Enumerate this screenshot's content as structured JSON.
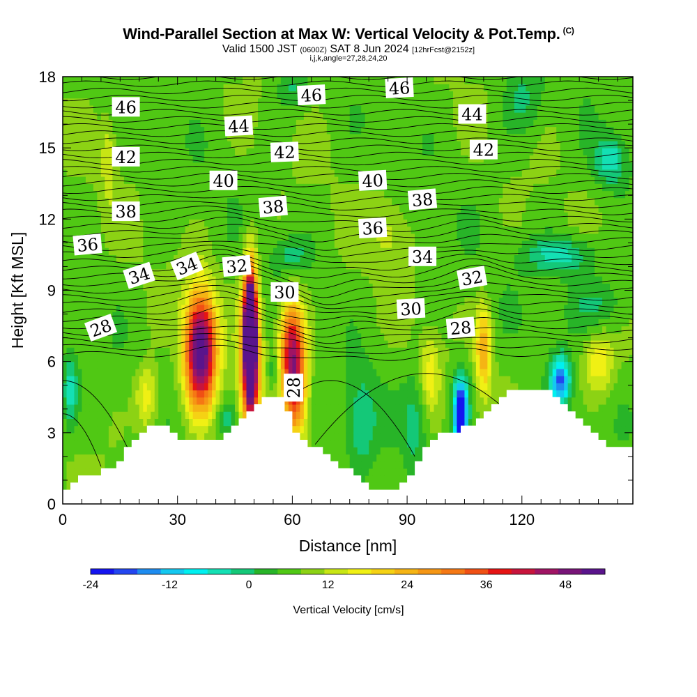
{
  "header": {
    "title": "Wind-Parallel Section at Max W: Vertical Velocity & Pot.Temp.",
    "copyright": "(C)",
    "valid_prefix": "Valid 1500 JST",
    "valid_utc": "(0600Z)",
    "valid_date": "SAT 8 Jun 2024",
    "forecast_info": "[12hrFcst@2152z]",
    "indices": "i,j,k,angle=27,28,24,20"
  },
  "chart_data": {
    "type": "heatmap",
    "title": "Wind-Parallel Section at Max W: Vertical Velocity & Pot.Temp.",
    "xlabel": "Distance [nm]",
    "ylabel": "Height [Kft MSL]",
    "xlim": [
      0,
      149
    ],
    "ylim": [
      0,
      18
    ],
    "x_ticks": [
      0,
      30,
      60,
      90,
      120
    ],
    "y_ticks": [
      0,
      3,
      6,
      9,
      12,
      15,
      18
    ],
    "fill_variable": "Vertical Velocity [cm/s]",
    "colorbar": {
      "label": "Vertical Velocity [cm/s]",
      "ticks": [
        -24,
        -12,
        0,
        12,
        24,
        36,
        48
      ],
      "min": -24,
      "max": 54,
      "step": 3,
      "colors": [
        "#1414f0",
        "#2346f0",
        "#1e8cf0",
        "#14c8f0",
        "#00f0f0",
        "#14e0b4",
        "#14c878",
        "#28b428",
        "#50c814",
        "#8cd214",
        "#c8e614",
        "#f0f014",
        "#f5d214",
        "#f5b414",
        "#f59614",
        "#f57814",
        "#f05014",
        "#e61414",
        "#c8143c",
        "#a01464",
        "#781478",
        "#5a148c"
      ]
    },
    "terrain": [
      [
        0,
        0.6
      ],
      [
        3,
        1.0
      ],
      [
        10,
        1.3
      ],
      [
        13,
        1.6
      ],
      [
        16,
        2.1
      ],
      [
        19,
        2.6
      ],
      [
        22,
        3.2
      ],
      [
        28,
        3.2
      ],
      [
        32,
        2.6
      ],
      [
        35,
        2.8
      ],
      [
        40,
        2.6
      ],
      [
        44,
        3.0
      ],
      [
        47,
        3.6
      ],
      [
        51,
        4.2
      ],
      [
        55,
        4.6
      ],
      [
        57,
        4.6
      ],
      [
        59,
        4.0
      ],
      [
        61,
        3.0
      ],
      [
        65,
        2.5
      ],
      [
        69,
        2.1
      ],
      [
        73,
        1.6
      ],
      [
        77,
        1.1
      ],
      [
        81,
        0.6
      ],
      [
        88,
        0.6
      ],
      [
        90,
        1.0
      ],
      [
        94,
        2.2
      ],
      [
        98,
        3.0
      ],
      [
        107,
        3.2
      ],
      [
        110,
        3.6
      ],
      [
        114,
        4.2
      ],
      [
        118,
        4.8
      ],
      [
        127,
        4.8
      ],
      [
        132,
        4.0
      ],
      [
        136,
        3.4
      ],
      [
        142,
        2.6
      ],
      [
        146,
        2.3
      ],
      [
        149,
        2.3
      ]
    ],
    "w_features": [
      {
        "x": 36,
        "z": 6.5,
        "sx": 4.0,
        "sz": 2.4,
        "w": 42
      },
      {
        "x": 49,
        "z": 7.2,
        "sx": 1.6,
        "sz": 2.6,
        "w": 58
      },
      {
        "x": 49,
        "z": 5.6,
        "sx": 2.8,
        "sz": 3.5,
        "w": 22
      },
      {
        "x": 60,
        "z": 6.6,
        "sx": 3.2,
        "sz": 2.0,
        "w": 30
      },
      {
        "x": 61,
        "z": 4.5,
        "sx": 2.8,
        "sz": 1.8,
        "w": 18
      },
      {
        "x": 110,
        "z": 6.5,
        "sx": 2.0,
        "sz": 1.8,
        "w": 16
      },
      {
        "x": 96,
        "z": 5.5,
        "sx": 2.5,
        "sz": 1.6,
        "w": 8
      },
      {
        "x": 22,
        "z": 4.5,
        "sx": 3.0,
        "sz": 1.4,
        "w": 10
      },
      {
        "x": 104,
        "z": 3.6,
        "sx": 1.5,
        "sz": 1.2,
        "w": -28
      },
      {
        "x": 104,
        "z": 4.4,
        "sx": 2.5,
        "sz": 1.5,
        "w": -10
      },
      {
        "x": 130,
        "z": 5.2,
        "sx": 2.5,
        "sz": 1.0,
        "w": -20
      },
      {
        "x": 2,
        "z": 4.8,
        "sx": 2.0,
        "sz": 1.5,
        "w": -10
      },
      {
        "x": 43,
        "z": 3.6,
        "sx": 3.0,
        "sz": 0.8,
        "w": -6
      },
      {
        "x": 55,
        "z": 5.6,
        "sx": 1.5,
        "sz": 0.8,
        "w": -6
      },
      {
        "x": 78,
        "z": 3.5,
        "sx": 4.0,
        "sz": 2.0,
        "w": -8
      },
      {
        "x": 92,
        "z": 3.5,
        "sx": 3.0,
        "sz": 2.0,
        "w": -6
      },
      {
        "x": 60,
        "z": 10.5,
        "sx": 5.0,
        "sz": 0.8,
        "w": -6
      },
      {
        "x": 130,
        "z": 10.5,
        "sx": 9.0,
        "sz": 0.8,
        "w": -10
      },
      {
        "x": 140,
        "z": 8.4,
        "sx": 8.0,
        "sz": 1.2,
        "w": -6
      },
      {
        "x": 140,
        "z": 6.0,
        "sx": 4.0,
        "sz": 1.4,
        "w": 10
      },
      {
        "x": 12,
        "z": 14.5,
        "sx": 2.0,
        "sz": 1.8,
        "w": 6
      },
      {
        "x": 85,
        "z": 11.5,
        "sx": 5.0,
        "sz": 1.5,
        "w": 5
      },
      {
        "x": 120,
        "z": 17.0,
        "sx": 5.0,
        "sz": 1.5,
        "w": -6
      },
      {
        "x": 143,
        "z": 14.5,
        "sx": 4.0,
        "sz": 1.0,
        "w": -10
      },
      {
        "x": 60,
        "z": 17.5,
        "sx": 4.0,
        "sz": 0.8,
        "w": -6
      }
    ],
    "theta_labels": [
      {
        "value": "46",
        "x": 16.5,
        "z": 16.7,
        "angle": 0
      },
      {
        "value": "46",
        "x": 65,
        "z": 17.2,
        "angle": -3
      },
      {
        "value": "46",
        "x": 88,
        "z": 17.5,
        "angle": -3
      },
      {
        "value": "44",
        "x": 46,
        "z": 15.9,
        "angle": -3
      },
      {
        "value": "44",
        "x": 107,
        "z": 16.4,
        "angle": 0
      },
      {
        "value": "42",
        "x": 16.5,
        "z": 14.6,
        "angle": 0
      },
      {
        "value": "42",
        "x": 58,
        "z": 14.8,
        "angle": -2
      },
      {
        "value": "42",
        "x": 110,
        "z": 14.9,
        "angle": 0
      },
      {
        "value": "40",
        "x": 42,
        "z": 13.6,
        "angle": 0
      },
      {
        "value": "40",
        "x": 81,
        "z": 13.6,
        "angle": -3
      },
      {
        "value": "38",
        "x": 16.5,
        "z": 12.3,
        "angle": 0
      },
      {
        "value": "38",
        "x": 55,
        "z": 12.5,
        "angle": -5
      },
      {
        "value": "38",
        "x": 94,
        "z": 12.8,
        "angle": -5
      },
      {
        "value": "36",
        "x": 6.5,
        "z": 10.9,
        "angle": -5
      },
      {
        "value": "36",
        "x": 81,
        "z": 11.6,
        "angle": -3
      },
      {
        "value": "34",
        "x": 20,
        "z": 9.6,
        "angle": -18
      },
      {
        "value": "34",
        "x": 32.5,
        "z": 10.0,
        "angle": -22
      },
      {
        "value": "34",
        "x": 94,
        "z": 10.4,
        "angle": 0
      },
      {
        "value": "32",
        "x": 45.5,
        "z": 10.0,
        "angle": -5
      },
      {
        "value": "32",
        "x": 107,
        "z": 9.5,
        "angle": -10
      },
      {
        "value": "30",
        "x": 58,
        "z": 8.9,
        "angle": 0
      },
      {
        "value": "30",
        "x": 91,
        "z": 8.2,
        "angle": -3
      },
      {
        "value": "28",
        "x": 10,
        "z": 7.4,
        "angle": -20
      },
      {
        "value": "28",
        "x": 104,
        "z": 7.4,
        "angle": -5
      },
      {
        "value": "28",
        "x": 60.5,
        "z": 4.9,
        "angle": -90
      }
    ]
  }
}
